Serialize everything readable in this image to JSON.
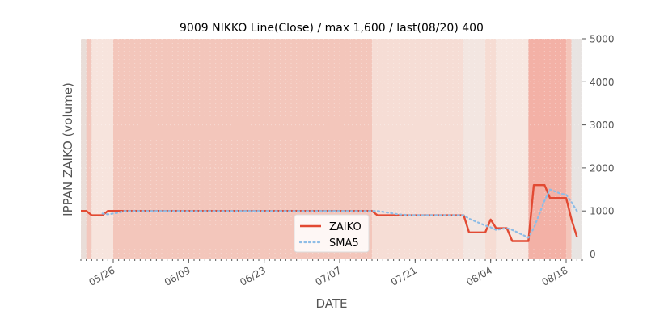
{
  "chart_data": {
    "type": "line",
    "title": "9009 NIKKO Line(Close) / max 1,600 / last(08/20) 400",
    "xlabel": "DATE",
    "ylabel": "IPPAN ZAIKO (volume)",
    "ylim": [
      0,
      5000
    ],
    "yticks": [
      0,
      1000,
      2000,
      3000,
      4000,
      5000
    ],
    "ytick_labels": [
      "0",
      "1000",
      "2000",
      "3000",
      "4000",
      "5000"
    ],
    "y_axis_side": "right",
    "x_start": "2024-05-20",
    "x_end": "2024-08-21",
    "xticks": [
      "2024-05-26",
      "2024-06-09",
      "2024-06-23",
      "2024-07-07",
      "2024-07-21",
      "2024-08-04",
      "2024-08-18"
    ],
    "xtick_labels": [
      "05/26",
      "06/09",
      "06/23",
      "07/07",
      "07/21",
      "08/04",
      "08/18"
    ],
    "legend_position": "lower-center",
    "grid": true,
    "series": [
      {
        "name": "ZAIKO",
        "color": "#e24a33",
        "style": "solid",
        "points": [
          [
            "2024-05-20",
            1000
          ],
          [
            "2024-05-21",
            1000
          ],
          [
            "2024-05-22",
            900
          ],
          [
            "2024-05-23",
            900
          ],
          [
            "2024-05-24",
            900
          ],
          [
            "2024-05-25",
            1000
          ],
          [
            "2024-05-26",
            1000
          ],
          [
            "2024-05-27",
            1000
          ],
          [
            "2024-07-13",
            1000
          ],
          [
            "2024-07-14",
            900
          ],
          [
            "2024-07-16",
            900
          ],
          [
            "2024-07-30",
            900
          ],
          [
            "2024-07-31",
            500
          ],
          [
            "2024-08-03",
            500
          ],
          [
            "2024-08-04",
            800
          ],
          [
            "2024-08-05",
            600
          ],
          [
            "2024-08-07",
            600
          ],
          [
            "2024-08-08",
            300
          ],
          [
            "2024-08-11",
            300
          ],
          [
            "2024-08-12",
            1600
          ],
          [
            "2024-08-14",
            1600
          ],
          [
            "2024-08-15",
            1300
          ],
          [
            "2024-08-18",
            1300
          ],
          [
            "2024-08-19",
            800
          ],
          [
            "2024-08-20",
            400
          ]
        ]
      },
      {
        "name": "SMA5",
        "color": "#8ebde6",
        "style": "dotted",
        "points": [
          [
            "2024-05-24",
            940
          ],
          [
            "2024-05-25",
            920
          ],
          [
            "2024-05-27",
            960
          ],
          [
            "2024-05-28",
            1000
          ],
          [
            "2024-07-14",
            1000
          ],
          [
            "2024-07-16",
            960
          ],
          [
            "2024-07-18",
            920
          ],
          [
            "2024-07-20",
            900
          ],
          [
            "2024-07-30",
            900
          ],
          [
            "2024-07-31",
            820
          ],
          [
            "2024-08-03",
            660
          ],
          [
            "2024-08-04",
            620
          ],
          [
            "2024-08-05",
            560
          ],
          [
            "2024-08-07",
            600
          ],
          [
            "2024-08-08",
            560
          ],
          [
            "2024-08-11",
            380
          ],
          [
            "2024-08-12",
            600
          ],
          [
            "2024-08-14",
            1240
          ],
          [
            "2024-08-15",
            1500
          ],
          [
            "2024-08-17",
            1400
          ],
          [
            "2024-08-18",
            1380
          ],
          [
            "2024-08-19",
            1200
          ],
          [
            "2024-08-20",
            1000
          ]
        ]
      }
    ],
    "shading_bands": [
      {
        "from": "2024-05-20",
        "to": "2024-05-21",
        "color": "#e9ddd8"
      },
      {
        "from": "2024-05-21",
        "to": "2024-05-22",
        "color": "#f3c7bd"
      },
      {
        "from": "2024-05-22",
        "to": "2024-05-26",
        "color": "#f7e4dd"
      },
      {
        "from": "2024-05-26",
        "to": "2024-07-13",
        "color": "#f3c6bb"
      },
      {
        "from": "2024-07-13",
        "to": "2024-07-30",
        "color": "#f6ddd5"
      },
      {
        "from": "2024-07-30",
        "to": "2024-08-03",
        "color": "#f3e6e1"
      },
      {
        "from": "2024-08-03",
        "to": "2024-08-05",
        "color": "#f6dcd3"
      },
      {
        "from": "2024-08-05",
        "to": "2024-08-11",
        "color": "#f7e7e1"
      },
      {
        "from": "2024-08-11",
        "to": "2024-08-18",
        "color": "#f3b1a6"
      },
      {
        "from": "2024-08-18",
        "to": "2024-08-19",
        "color": "#f4c5ba"
      },
      {
        "from": "2024-08-19",
        "to": "2024-08-21",
        "color": "#e8e4e2"
      }
    ]
  }
}
